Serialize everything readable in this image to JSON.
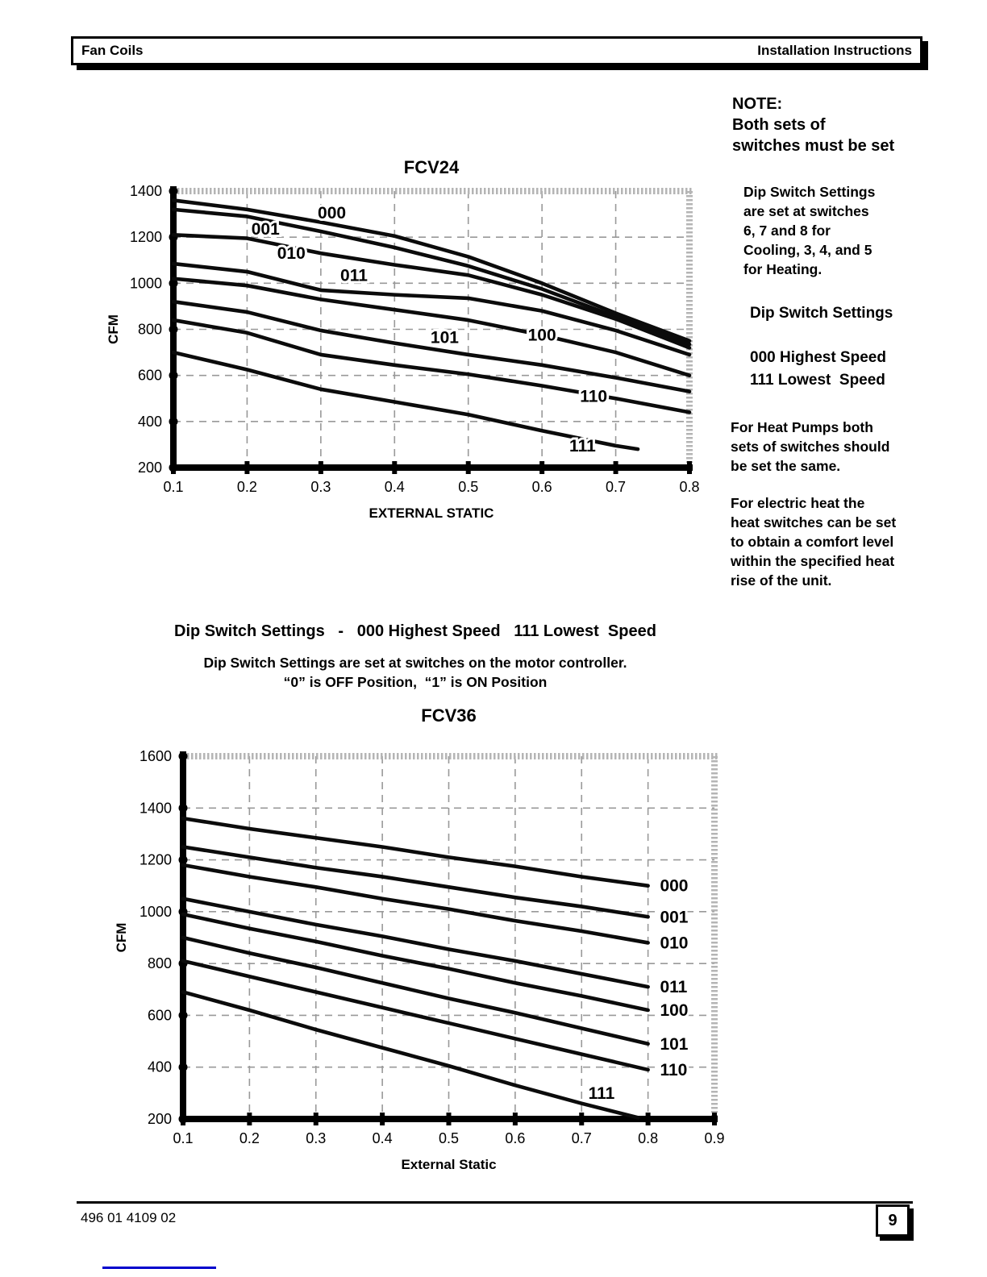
{
  "header": {
    "left": "Fan Coils",
    "right": "Installation Instructions"
  },
  "note": {
    "text": "NOTE:\nBoth sets of\nswitches must be set"
  },
  "sidebar": {
    "para1": "Dip Switch Settings\nare set at switches\n6, 7 and 8 for\nCooling, 3, 4, and 5\nfor Heating.",
    "heading": "Dip Switch Settings",
    "speed_lines": "000 Highest Speed\n111 Lowest  Speed",
    "para2": "For Heat Pumps both\nsets of switches should\nbe set the same.",
    "para3": "For electric heat the\nheat switches can be set\nto obtain a comfort level\nwithin the specified heat\nrise of the unit."
  },
  "mid_section": {
    "heading": "Dip Switch Settings   -   000 Highest Speed   111 Lowest  Speed",
    "line1": "Dip Switch Settings are set at switches on the motor controller.",
    "line2": "“0” is OFF Position,  “1” is ON Position"
  },
  "footer": {
    "doc_number": "496 01 4109 02",
    "page_number": "9"
  },
  "chart_data": [
    {
      "type": "line",
      "title": "FCV24",
      "xlabel": "EXTERNAL STATIC",
      "ylabel": "CFM",
      "xlim": [
        0.1,
        0.8
      ],
      "ylim": [
        200,
        1400
      ],
      "xticks": [
        "0.1",
        "0.2",
        "0.3",
        "0.4",
        "0.5",
        "0.6",
        "0.7",
        "0.8"
      ],
      "yticks": [
        1400,
        1200,
        1000,
        800,
        600,
        400,
        200
      ],
      "grid": true,
      "legend_position": "labels-on-curves",
      "series": [
        {
          "name": "000",
          "x": [
            0.1,
            0.2,
            0.3,
            0.4,
            0.5,
            0.6,
            0.7,
            0.8
          ],
          "values": [
            1360,
            1320,
            1265,
            1205,
            1115,
            1000,
            870,
            750
          ],
          "label_at": [
            0.315,
            1305
          ],
          "label_anchor": "middle"
        },
        {
          "name": "001",
          "x": [
            0.1,
            0.2,
            0.3,
            0.4,
            0.5,
            0.6,
            0.7,
            0.8
          ],
          "values": [
            1320,
            1290,
            1225,
            1155,
            1075,
            975,
            855,
            735
          ],
          "label_at": [
            0.225,
            1235
          ],
          "label_anchor": "middle"
        },
        {
          "name": "010",
          "x": [
            0.1,
            0.2,
            0.3,
            0.4,
            0.5,
            0.6,
            0.7,
            0.8
          ],
          "values": [
            1210,
            1195,
            1130,
            1080,
            1035,
            950,
            845,
            720
          ],
          "label_at": [
            0.26,
            1130
          ],
          "label_anchor": "middle"
        },
        {
          "name": "011",
          "x": [
            0.1,
            0.2,
            0.3,
            0.4,
            0.5,
            0.6,
            0.7,
            0.8
          ],
          "values": [
            1085,
            1050,
            970,
            950,
            935,
            880,
            795,
            690
          ],
          "label_at": [
            0.345,
            1035
          ],
          "label_anchor": "middle"
        },
        {
          "name": "100",
          "x": [
            0.1,
            0.2,
            0.3,
            0.4,
            0.5,
            0.6,
            0.7,
            0.8
          ],
          "values": [
            1020,
            990,
            930,
            885,
            840,
            775,
            700,
            600
          ],
          "label_at": [
            0.6,
            775
          ],
          "label_anchor": "middle"
        },
        {
          "name": "101",
          "x": [
            0.1,
            0.2,
            0.3,
            0.4,
            0.5,
            0.6,
            0.7,
            0.8
          ],
          "values": [
            920,
            875,
            795,
            740,
            690,
            645,
            590,
            530
          ],
          "label_at": [
            0.468,
            765
          ],
          "label_anchor": "middle"
        },
        {
          "name": "110",
          "x": [
            0.1,
            0.2,
            0.3,
            0.4,
            0.5,
            0.6,
            0.7,
            0.8
          ],
          "values": [
            840,
            785,
            690,
            645,
            605,
            555,
            500,
            440
          ],
          "label_at": [
            0.67,
            510
          ],
          "label_anchor": "middle"
        },
        {
          "name": "111",
          "x": [
            0.1,
            0.2,
            0.3,
            0.4,
            0.5,
            0.6,
            0.7,
            0.73
          ],
          "values": [
            700,
            625,
            540,
            485,
            430,
            360,
            295,
            280
          ],
          "label_at": [
            0.655,
            295
          ],
          "label_anchor": "middle"
        }
      ]
    },
    {
      "type": "line",
      "title": "FCV36",
      "xlabel": "External Static",
      "ylabel": "CFM",
      "xlim": [
        0.1,
        0.9
      ],
      "ylim": [
        200,
        1600
      ],
      "xticks": [
        "0.1",
        "0.2",
        "0.3",
        "0.4",
        "0.5",
        "0.6",
        "0.7",
        "0.8",
        "0.9"
      ],
      "yticks": [
        1600,
        1400,
        1200,
        1000,
        800,
        600,
        400,
        200
      ],
      "grid": true,
      "legend_position": "labels-at-line-ends",
      "series": [
        {
          "name": "000",
          "x": [
            0.1,
            0.2,
            0.3,
            0.4,
            0.5,
            0.6,
            0.7,
            0.8
          ],
          "values": [
            1360,
            1320,
            1285,
            1250,
            1210,
            1175,
            1135,
            1100
          ],
          "label_at": [
            0.818,
            1100
          ],
          "label_anchor": "start"
        },
        {
          "name": "001",
          "x": [
            0.1,
            0.2,
            0.3,
            0.4,
            0.5,
            0.6,
            0.7,
            0.8
          ],
          "values": [
            1250,
            1210,
            1170,
            1135,
            1095,
            1055,
            1020,
            980
          ],
          "label_at": [
            0.818,
            980
          ],
          "label_anchor": "start"
        },
        {
          "name": "010",
          "x": [
            0.1,
            0.2,
            0.3,
            0.4,
            0.5,
            0.6,
            0.7,
            0.8
          ],
          "values": [
            1180,
            1135,
            1095,
            1050,
            1010,
            965,
            925,
            880
          ],
          "label_at": [
            0.818,
            880
          ],
          "label_anchor": "start"
        },
        {
          "name": "011",
          "x": [
            0.1,
            0.2,
            0.3,
            0.4,
            0.5,
            0.6,
            0.7,
            0.8
          ],
          "values": [
            1050,
            1000,
            950,
            905,
            855,
            810,
            760,
            710
          ],
          "label_at": [
            0.818,
            710
          ],
          "label_anchor": "start"
        },
        {
          "name": "100",
          "x": [
            0.1,
            0.2,
            0.3,
            0.4,
            0.5,
            0.6,
            0.7,
            0.8
          ],
          "values": [
            990,
            935,
            885,
            830,
            780,
            725,
            675,
            620
          ],
          "label_at": [
            0.818,
            620
          ],
          "label_anchor": "start"
        },
        {
          "name": "101",
          "x": [
            0.1,
            0.2,
            0.3,
            0.4,
            0.5,
            0.6,
            0.7,
            0.8
          ],
          "values": [
            900,
            840,
            785,
            725,
            665,
            610,
            550,
            490
          ],
          "label_at": [
            0.818,
            490
          ],
          "label_anchor": "start"
        },
        {
          "name": "110",
          "x": [
            0.1,
            0.2,
            0.3,
            0.4,
            0.5,
            0.6,
            0.7,
            0.8
          ],
          "values": [
            810,
            750,
            690,
            630,
            570,
            510,
            450,
            390
          ],
          "label_at": [
            0.818,
            390
          ],
          "label_anchor": "start"
        },
        {
          "name": "111",
          "x": [
            0.1,
            0.2,
            0.3,
            0.4,
            0.5,
            0.6,
            0.7,
            0.785
          ],
          "values": [
            690,
            620,
            545,
            475,
            405,
            330,
            260,
            205
          ],
          "label_at": [
            0.73,
            300
          ],
          "label_anchor": "middle"
        }
      ]
    }
  ]
}
